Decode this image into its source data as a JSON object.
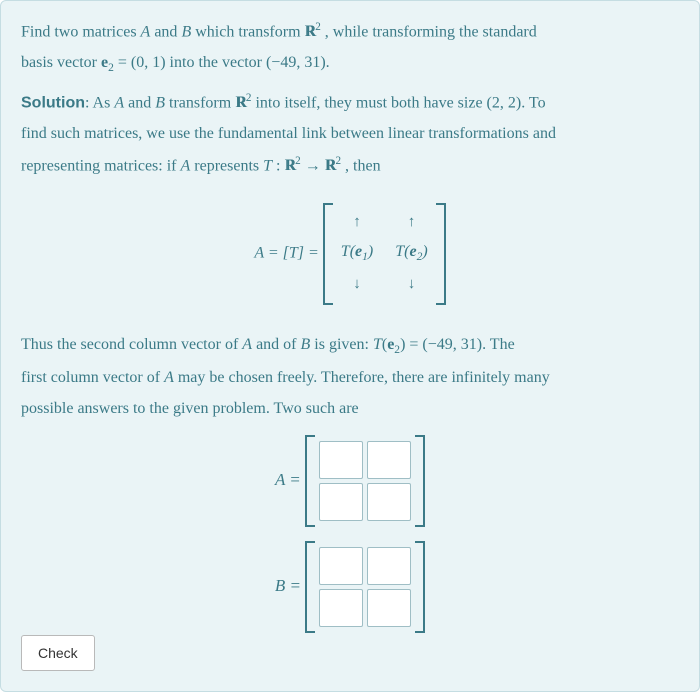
{
  "colors": {
    "panel_bg": "#eaf4f6",
    "panel_border": "#c5dde2",
    "text": "#3b7a87",
    "input_border": "#9fbec5",
    "input_bg": "#ffffff",
    "button_bg": "#ffffff",
    "button_border": "#b9b9b9",
    "button_text": "#333333"
  },
  "typography": {
    "body_fontsize": 16,
    "body_family": "Georgia, Times New Roman, serif",
    "button_family": "Arial, sans-serif",
    "button_fontsize": 14
  },
  "problem": {
    "line1_pre": "Find two matrices ",
    "A": "A",
    "and": " and ",
    "B": "B",
    "line1_mid": " which transform ",
    "R": "R",
    "R_exp": "2",
    "line1_post": " , while transforming the standard",
    "line2_pre": "basis vector ",
    "e2": "e",
    "e2_sub": "2",
    "eq": " = (0, 1)",
    "line2_mid": " into the vector ",
    "vec": "(−49, 31)",
    "period": "."
  },
  "solution": {
    "label": "Solution",
    "s1_a": ": As ",
    "s1_b": " transform ",
    "s1_c": " into itself, they must both have size ",
    "size": "(2, 2)",
    "s1_d": ". To",
    "s2": "find such matrices, we use the fundamental link between linear transformations and",
    "s3_a": "representing matrices: if ",
    "s3_b": " represents ",
    "T": "T",
    "colon": " : ",
    "arrow": " → ",
    "s3_c": " , then"
  },
  "formula": {
    "lhs": "A = [T] = ",
    "up": "↑",
    "down": "↓",
    "Te1_a": "T",
    "Te1_b": "(",
    "Te1_c": "e",
    "Te1_sub": "1",
    "Te1_d": ")",
    "Te2_a": "T",
    "Te2_b": "(",
    "Te2_c": "e",
    "Te2_sub": "2",
    "Te2_d": ")"
  },
  "explain": {
    "p1_a": "Thus the second column vector of ",
    "p1_b": " and of ",
    "p1_c": " is given: ",
    "Te2": "T",
    "Te2_paren_l": "(",
    "Te2_e": "e",
    "Te2_sub": "2",
    "Te2_paren_r": ")",
    "eq": " = (−49, 31)",
    "p1_d": ". The",
    "p2_a": "first column vector of ",
    "p2_b": " may be chosen freely. Therefore, there are infinitely many",
    "p3": "possible answers to the given problem. Two such are"
  },
  "matrices": {
    "A_label": "A = ",
    "B_label": "B = ",
    "grid": {
      "rows": 2,
      "cols": 2
    },
    "cell_values": {
      "A": [
        "",
        "",
        "",
        ""
      ],
      "B": [
        "",
        "",
        "",
        ""
      ]
    }
  },
  "button": {
    "check": "Check"
  }
}
